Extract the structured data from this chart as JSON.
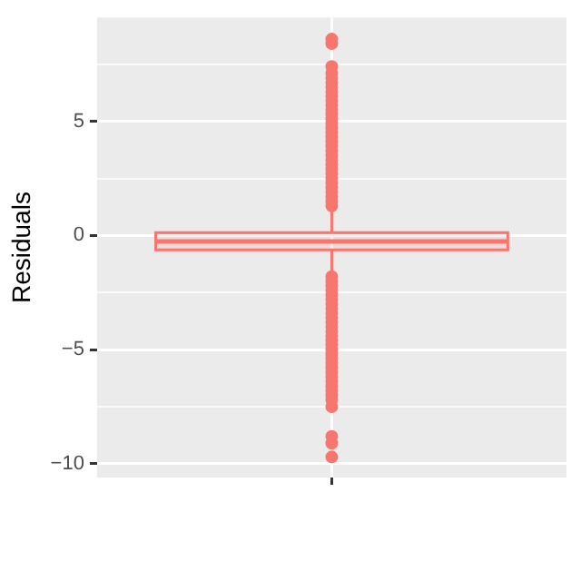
{
  "chart_data": {
    "type": "box",
    "ylabel": "Residuals",
    "categories": [
      null
    ],
    "color": "#f8766d",
    "boxes": [
      {
        "low": -1.75,
        "q1": -0.63,
        "median": -0.26,
        "q3": 0.13,
        "high": 1.2,
        "outliers": [
          1.3,
          1.5,
          1.7,
          1.9,
          2.1,
          2.3,
          2.5,
          2.7,
          2.9,
          3.1,
          3.3,
          3.5,
          3.7,
          3.9,
          4.1,
          4.3,
          4.5,
          4.7,
          4.9,
          5.1,
          5.3,
          5.5,
          5.7,
          5.9,
          6.1,
          6.3,
          6.5,
          6.7,
          6.9,
          7.1,
          7.4,
          8.4,
          8.6,
          -1.8,
          -2.0,
          -2.2,
          -2.4,
          -2.6,
          -2.8,
          -3.0,
          -3.2,
          -3.4,
          -3.6,
          -3.8,
          -4.0,
          -4.2,
          -4.4,
          -4.6,
          -4.8,
          -5.0,
          -5.2,
          -5.4,
          -5.6,
          -5.8,
          -6.0,
          -6.2,
          -6.4,
          -6.6,
          -6.8,
          -7.0,
          -7.2,
          -7.5,
          -8.8,
          -9.1,
          -9.7
        ]
      }
    ],
    "ylim": [
      -10.6,
      9.55
    ],
    "yticks": [
      -10,
      {
        "value": -7.5,
        "label": null
      },
      -5,
      {
        "value": -2.5,
        "label": null
      },
      0,
      {
        "value": 2.5,
        "label": null
      },
      5,
      {
        "value": 7.5,
        "label": null
      }
    ],
    "grid": true,
    "legend": false
  }
}
